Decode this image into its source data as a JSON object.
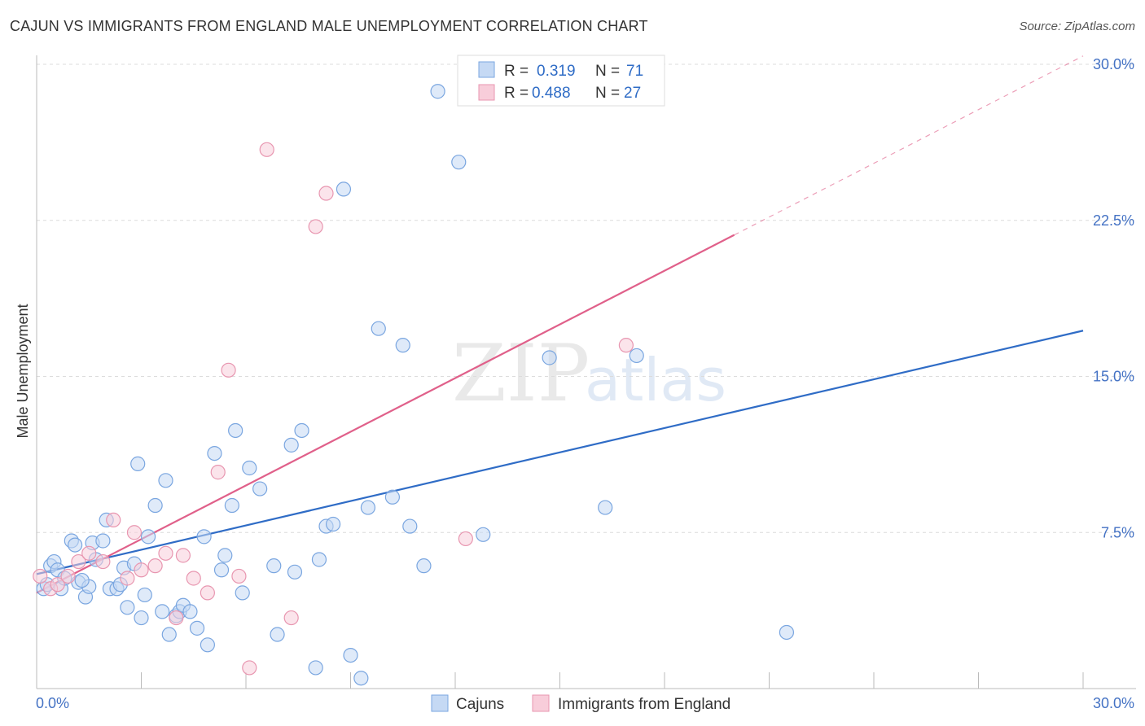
{
  "title": "CAJUN VS IMMIGRANTS FROM ENGLAND MALE UNEMPLOYMENT CORRELATION CHART",
  "source": "Source: ZipAtlas.com",
  "watermark": {
    "zip": "ZIP",
    "atlas": "atlas"
  },
  "legend": {
    "r_label": "R =",
    "n_label": "N =",
    "rows": [
      {
        "r": "0.319",
        "n": "71"
      },
      {
        "r": "0.488",
        "n": "27"
      }
    ]
  },
  "chart_data": {
    "type": "scatter",
    "title": "CAJUN VS IMMIGRANTS FROM ENGLAND MALE UNEMPLOYMENT CORRELATION CHART",
    "xlabel": "",
    "ylabel": "Male Unemployment",
    "xlim": [
      0,
      30
    ],
    "ylim": [
      0,
      30
    ],
    "x_tick_labels": [
      "0.0%",
      "30.0%"
    ],
    "y_ticks": [
      {
        "value": 7.5,
        "label": "7.5%"
      },
      {
        "value": 15,
        "label": "15.0%"
      },
      {
        "value": 22.5,
        "label": "22.5%"
      },
      {
        "value": 30,
        "label": "30.0%"
      }
    ],
    "grid": true,
    "legend_position": "top-center",
    "series": [
      {
        "name": "Cajuns",
        "color": "#7aa6e0",
        "fill": "#c5d9f4",
        "trend_color": "#2f6cc6",
        "trend": {
          "x0": 0,
          "y0": 5.5,
          "x1": 30,
          "y1": 17.2,
          "dash_to": 30
        },
        "points": [
          [
            0.2,
            4.8
          ],
          [
            0.4,
            5.9
          ],
          [
            0.5,
            6.1
          ],
          [
            0.6,
            5.7
          ],
          [
            0.7,
            4.8
          ],
          [
            0.8,
            5.3
          ],
          [
            1.0,
            7.1
          ],
          [
            1.1,
            6.9
          ],
          [
            1.2,
            5.1
          ],
          [
            1.4,
            4.4
          ],
          [
            1.5,
            4.9
          ],
          [
            1.6,
            7.0
          ],
          [
            1.7,
            6.2
          ],
          [
            1.9,
            7.1
          ],
          [
            2.0,
            8.1
          ],
          [
            2.1,
            4.8
          ],
          [
            2.3,
            4.8
          ],
          [
            2.4,
            5.0
          ],
          [
            2.5,
            5.8
          ],
          [
            2.6,
            3.9
          ],
          [
            2.8,
            6.0
          ],
          [
            2.9,
            10.8
          ],
          [
            3.0,
            3.4
          ],
          [
            3.1,
            4.5
          ],
          [
            3.2,
            7.3
          ],
          [
            3.4,
            8.8
          ],
          [
            3.6,
            3.7
          ],
          [
            3.7,
            10.0
          ],
          [
            3.8,
            2.6
          ],
          [
            4.0,
            3.5
          ],
          [
            4.1,
            3.7
          ],
          [
            4.2,
            4.0
          ],
          [
            4.4,
            3.7
          ],
          [
            4.6,
            2.9
          ],
          [
            4.8,
            7.3
          ],
          [
            4.9,
            2.1
          ],
          [
            5.1,
            11.3
          ],
          [
            5.3,
            5.7
          ],
          [
            5.4,
            6.4
          ],
          [
            5.6,
            8.8
          ],
          [
            5.7,
            12.4
          ],
          [
            5.9,
            4.6
          ],
          [
            6.1,
            10.6
          ],
          [
            6.4,
            9.6
          ],
          [
            6.8,
            5.9
          ],
          [
            6.9,
            2.6
          ],
          [
            7.3,
            11.7
          ],
          [
            7.4,
            5.6
          ],
          [
            7.6,
            12.4
          ],
          [
            8.0,
            1.0
          ],
          [
            8.1,
            6.2
          ],
          [
            8.3,
            7.8
          ],
          [
            8.5,
            7.9
          ],
          [
            8.8,
            24.0
          ],
          [
            9.0,
            1.6
          ],
          [
            9.3,
            0.5
          ],
          [
            9.5,
            8.7
          ],
          [
            9.8,
            17.3
          ],
          [
            10.2,
            9.2
          ],
          [
            10.5,
            16.5
          ],
          [
            10.7,
            7.8
          ],
          [
            11.1,
            5.9
          ],
          [
            11.5,
            28.7
          ],
          [
            12.1,
            25.3
          ],
          [
            12.8,
            7.4
          ],
          [
            14.7,
            15.9
          ],
          [
            16.3,
            8.7
          ],
          [
            17.2,
            16.0
          ],
          [
            21.5,
            2.7
          ],
          [
            0.3,
            5.0
          ],
          [
            1.3,
            5.2
          ]
        ]
      },
      {
        "name": "Immigrants from England",
        "color": "#e896b0",
        "fill": "#f8cdda",
        "trend_color": "#e0608a",
        "trend": {
          "x0": 0,
          "y0": 4.6,
          "x1": 20,
          "y1": 21.8,
          "dash_to": 30
        },
        "points": [
          [
            0.1,
            5.4
          ],
          [
            0.4,
            4.8
          ],
          [
            0.6,
            5.0
          ],
          [
            0.9,
            5.4
          ],
          [
            1.2,
            6.1
          ],
          [
            1.5,
            6.5
          ],
          [
            1.9,
            6.1
          ],
          [
            2.2,
            8.1
          ],
          [
            2.6,
            5.3
          ],
          [
            2.8,
            7.5
          ],
          [
            3.0,
            5.7
          ],
          [
            3.4,
            5.9
          ],
          [
            3.7,
            6.5
          ],
          [
            4.0,
            3.4
          ],
          [
            4.2,
            6.4
          ],
          [
            4.5,
            5.3
          ],
          [
            4.9,
            4.6
          ],
          [
            5.2,
            10.4
          ],
          [
            5.5,
            15.3
          ],
          [
            5.8,
            5.4
          ],
          [
            6.1,
            1.0
          ],
          [
            6.6,
            25.9
          ],
          [
            7.3,
            3.4
          ],
          [
            8.0,
            22.2
          ],
          [
            8.3,
            23.8
          ],
          [
            12.3,
            7.2
          ],
          [
            16.9,
            16.5
          ]
        ]
      }
    ]
  }
}
